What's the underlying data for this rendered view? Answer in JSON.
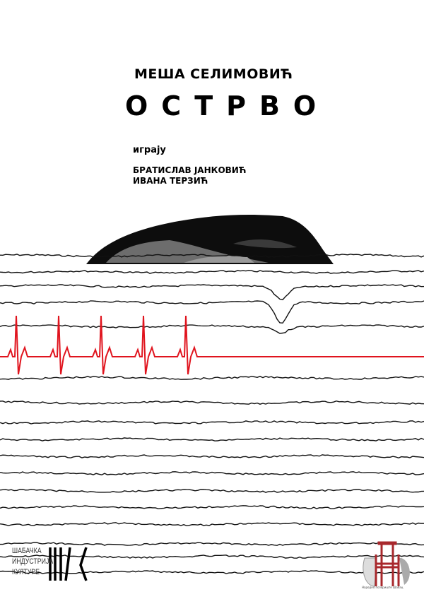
{
  "poster": {
    "author": "МЕША СЕЛИМОВИЋ",
    "title": "ОСТРВО",
    "performers_label": "играју",
    "performers": [
      "БРАТИСЛАВ ЈАНКОВИЋ",
      "ИВАНА ТЕРЗИЋ"
    ]
  },
  "logos": {
    "left_lines": [
      "ШАБАЧКА",
      "ИНДУСТРИЈА",
      "КУЛТУРЕ"
    ],
    "right": "Народно позориште Шабац"
  },
  "colors": {
    "ecg": "#e0141e",
    "ink": "#000000",
    "logo_red": "#a8282c"
  }
}
